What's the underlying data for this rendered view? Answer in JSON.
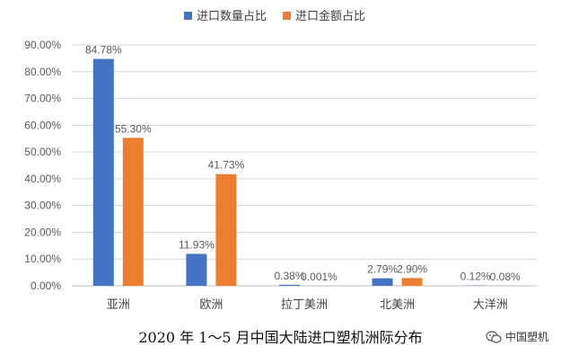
{
  "chart_data": {
    "type": "bar",
    "categories": [
      "亚洲",
      "欧洲",
      "拉丁美洲",
      "北美洲",
      "大洋洲"
    ],
    "series": [
      {
        "name": "进口数量占比",
        "values": [
          84.78,
          11.93,
          0.38,
          2.79,
          0.12
        ],
        "labels": [
          "84.78%",
          "11.93%",
          "0.38%",
          "2.79%",
          "0.12%"
        ],
        "color": "#4472C4"
      },
      {
        "name": "进口金额占比",
        "values": [
          55.3,
          41.73,
          0.001,
          2.9,
          0.08
        ],
        "labels": [
          "55.30%",
          "41.73%",
          "0.001%",
          "2.90%",
          "0.08%"
        ],
        "color": "#ED7D31"
      }
    ],
    "ylim": [
      0,
      90
    ],
    "yticks": [
      "0.00%",
      "10.00%",
      "20.00%",
      "30.00%",
      "40.00%",
      "50.00%",
      "60.00%",
      "70.00%",
      "80.00%",
      "90.00%"
    ],
    "legend": "top-center",
    "grid": true
  },
  "caption": "2020 年 1～5 月中国大陆进口塑机洲际分布",
  "watermark": {
    "text": "中国塑机",
    "icon": "wechat-icon"
  }
}
